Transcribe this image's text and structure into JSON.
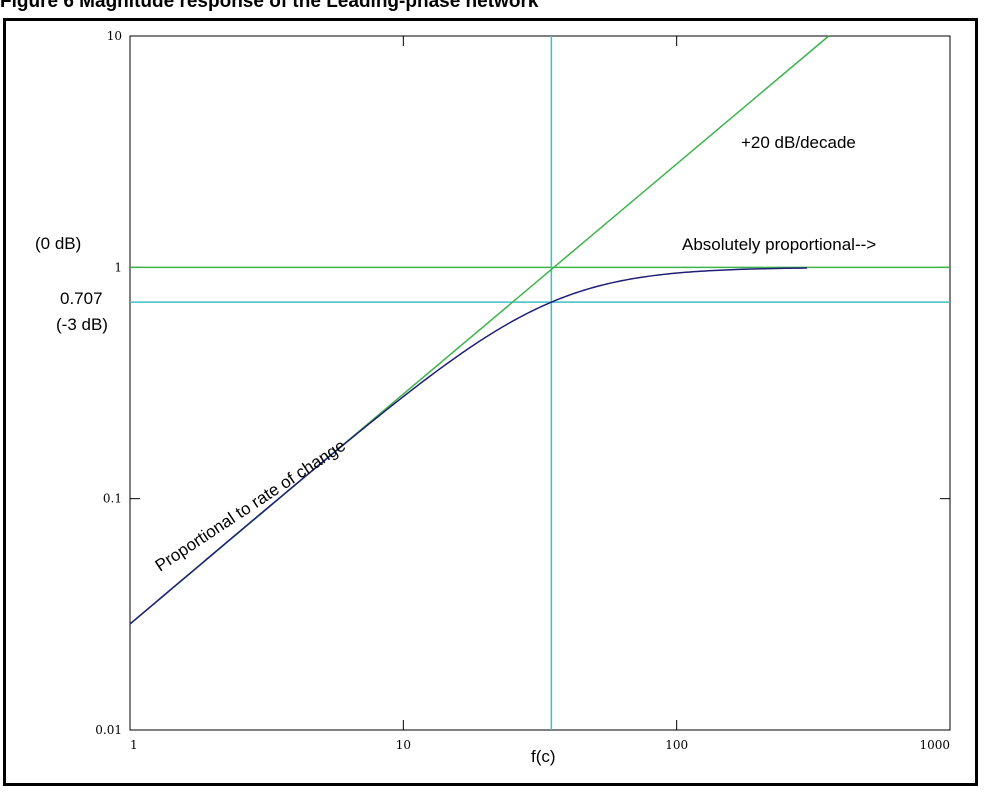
{
  "page": {
    "title": "Figure 6 Magnitude response of the Leading-phase network"
  },
  "chart_data": {
    "type": "line",
    "title": "Figure 6 Magnitude response of the Leading-phase network",
    "xlabel": "",
    "ylabel": "",
    "x_scale": "log",
    "y_scale": "log",
    "xlim": [
      1,
      1000
    ],
    "ylim": [
      0.01,
      10
    ],
    "x_ticks": [
      "1",
      "10",
      "100",
      "1000"
    ],
    "y_ticks": [
      "0.01",
      "0.1",
      "1",
      "10"
    ],
    "grid": false,
    "series": [
      {
        "style": "asymptote",
        "color": "#3cb44b",
        "x": [
          1,
          360
        ],
        "y": [
          0.0287,
          10
        ]
      },
      {
        "style": "magnitude-response",
        "color": "#1f1f7a",
        "corner_frequency": 34.8,
        "x": [
          1,
          2,
          5,
          10,
          20,
          34.8,
          50,
          100,
          200,
          300
        ],
        "y": [
          0.0287,
          0.0575,
          0.142,
          0.276,
          0.498,
          0.707,
          0.821,
          0.945,
          0.985,
          0.993
        ]
      }
    ],
    "reference_lines": [
      {
        "orientation": "horizontal",
        "value": 1,
        "color": "#3cb44b"
      },
      {
        "orientation": "horizontal",
        "value": 0.707,
        "color": "#3fbfbf"
      },
      {
        "orientation": "vertical",
        "value": 34.8,
        "color": "#3fbfbf"
      }
    ],
    "annotations": {
      "db_0": "(0 dB)",
      "val_707": "0.707",
      "db_3": "(-3 dB)",
      "slope": "+20 dB/decade",
      "proportional": "Absolutely proportional-->",
      "rate": "Proportional to rate of change",
      "fc": "f(c)"
    }
  }
}
